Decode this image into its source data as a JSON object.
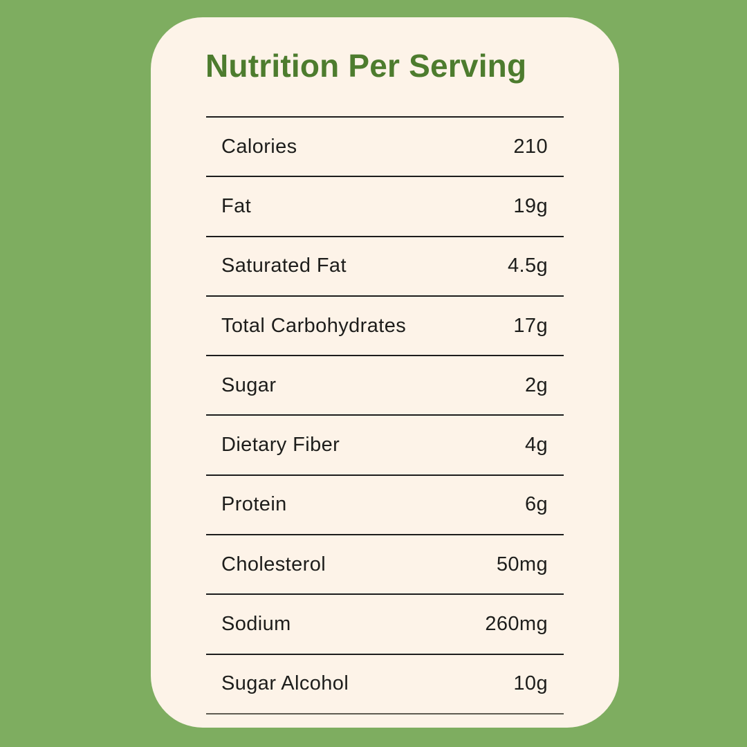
{
  "page": {
    "background_color": "#7ead60",
    "card_color": "#fdf3e8"
  },
  "header": {
    "title": "Nutrition Per Serving",
    "title_color": "#4d7c2e"
  },
  "table": {
    "rows": [
      {
        "label": "Calories",
        "value": "210"
      },
      {
        "label": "Fat",
        "value": "19g"
      },
      {
        "label": "Saturated Fat",
        "value": "4.5g"
      },
      {
        "label": "Total Carbohydrates",
        "value": "17g"
      },
      {
        "label": "Sugar",
        "value": "2g"
      },
      {
        "label": "Dietary Fiber",
        "value": "4g"
      },
      {
        "label": "Protein",
        "value": "6g"
      },
      {
        "label": "Cholesterol",
        "value": "50mg"
      },
      {
        "label": "Sodium",
        "value": "260mg"
      },
      {
        "label": "Sugar Alcohol",
        "value": "10g"
      }
    ]
  }
}
